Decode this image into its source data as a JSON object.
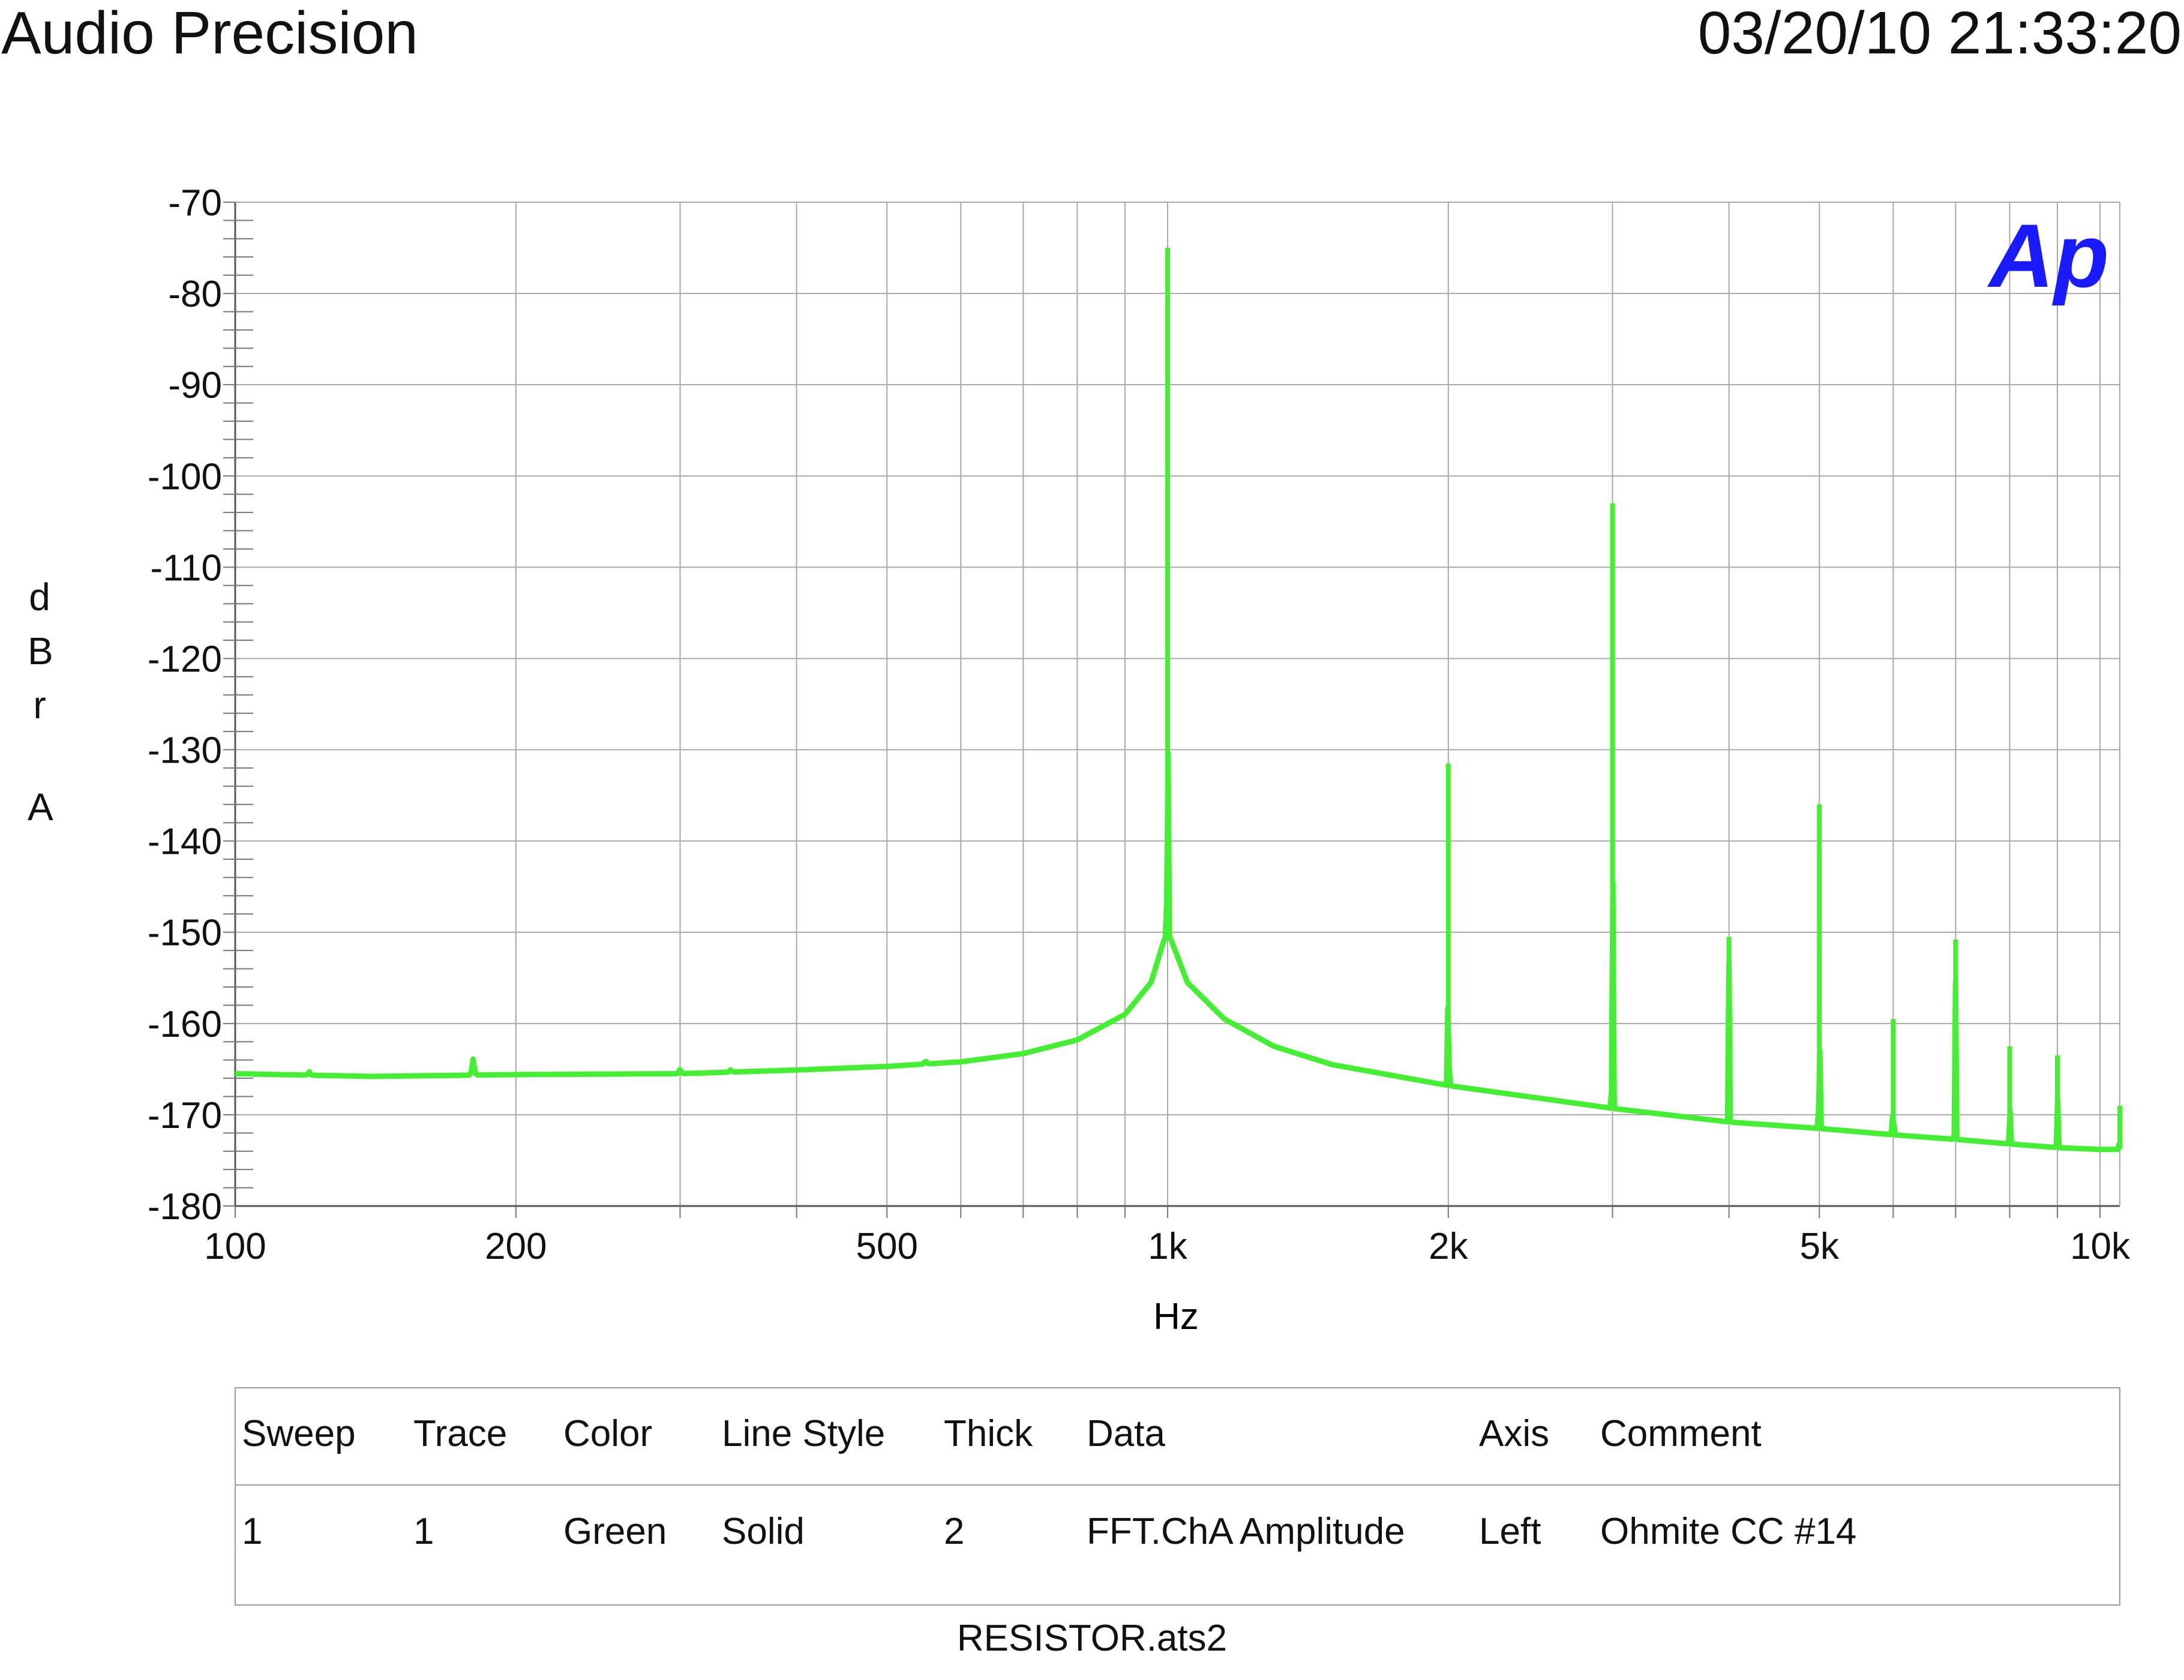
{
  "header": {
    "left": "Audio Precision",
    "right": "03/20/10 21:33:20"
  },
  "chart_data": {
    "type": "line",
    "xlabel": "Hz",
    "ylabel": "dBr A",
    "ylabel_letters": [
      "d",
      "B",
      "r",
      "A"
    ],
    "xscale": "log",
    "xlim": [
      100,
      10500
    ],
    "ylim": [
      -180,
      -70
    ],
    "xticks": [
      100,
      200,
      500,
      1000,
      2000,
      5000,
      10000
    ],
    "xtick_labels": [
      "100",
      "200",
      "500",
      "1k",
      "2k",
      "5k",
      "10k"
    ],
    "yticks": [
      -70,
      -80,
      -90,
      -100,
      -110,
      -120,
      -130,
      -140,
      -150,
      -160,
      -170,
      -180
    ],
    "ytick_labels": [
      "-70",
      "-80",
      "-90",
      "-100",
      "-110",
      "-120",
      "-130",
      "-140",
      "-150",
      "-160",
      "-170",
      "-180"
    ],
    "grid": true,
    "logo_text": "Ap",
    "logo_color": "#1a1aff",
    "series": [
      {
        "color": "#44ee33",
        "floor": [
          [
            100,
            -165.5
          ],
          [
            140,
            -165.8
          ],
          [
            200,
            -165.6
          ],
          [
            300,
            -165.5
          ],
          [
            400,
            -165.1
          ],
          [
            500,
            -164.7
          ],
          [
            600,
            -164.2
          ],
          [
            700,
            -163.3
          ],
          [
            800,
            -161.8
          ],
          [
            900,
            -159.0
          ],
          [
            960,
            -155.5
          ],
          [
            990,
            -151.0
          ],
          [
            1000,
            -150.0
          ],
          [
            1010,
            -151.0
          ],
          [
            1050,
            -155.5
          ],
          [
            1150,
            -159.5
          ],
          [
            1300,
            -162.5
          ],
          [
            1500,
            -164.5
          ],
          [
            2000,
            -166.8
          ],
          [
            3000,
            -169.3
          ],
          [
            4000,
            -170.8
          ],
          [
            5000,
            -171.5
          ],
          [
            6000,
            -172.2
          ],
          [
            7000,
            -172.7
          ],
          [
            8000,
            -173.2
          ],
          [
            9000,
            -173.6
          ],
          [
            10000,
            -173.8
          ],
          [
            10500,
            -173.8
          ]
        ],
        "bumps": [
          [
            120,
            -165.2
          ],
          [
            180,
            -163.5
          ],
          [
            300,
            -165.0
          ],
          [
            340,
            -165.0
          ],
          [
            550,
            -164.0
          ]
        ],
        "peaks": [
          [
            1000,
            -75
          ],
          [
            2000,
            -131.5
          ],
          [
            3000,
            -103
          ],
          [
            4000,
            -150.5
          ],
          [
            5000,
            -136
          ],
          [
            6000,
            -159.5
          ],
          [
            7000,
            -150.8
          ],
          [
            8000,
            -162.5
          ],
          [
            9000,
            -163.5
          ],
          [
            10500,
            -169
          ]
        ]
      }
    ]
  },
  "legend": {
    "headers": [
      "Sweep",
      "Trace",
      "Color",
      "Line Style",
      "Thick",
      "Data",
      "Axis",
      "Comment"
    ],
    "rows": [
      [
        "1",
        "1",
        "Green",
        "Solid",
        "2",
        "FFT.ChA Amplitude",
        "Left",
        "Ohmite CC #14"
      ]
    ]
  },
  "footer": "RESISTOR.ats2"
}
